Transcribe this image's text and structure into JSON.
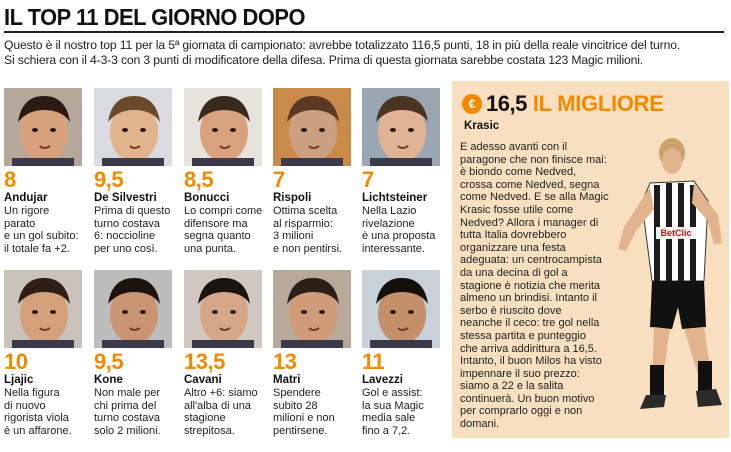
{
  "headline": "IL TOP 11 DEL GIORNO DOPO",
  "intro": [
    "Questo è il nostro top 11 per la 5ª giornata di campionato: avrebbe totalizzato 116,5 punti, 18 in più della reale vincitrice del turno.",
    "Si schiera con il 4-3-3 con 3 punti di modificatore della difesa. Prima di questa giornata sarebbe costata 123 Magic milioni."
  ],
  "players": [
    {
      "score": "8",
      "name": "Andujar",
      "desc": [
        "Un rigore",
        "parato",
        "e un gol subito:",
        "il totale fa +2."
      ]
    },
    {
      "score": "9,5",
      "name": "De Silvestri",
      "desc": [
        "Prima di questo",
        "turno costava",
        "6: noccioline",
        "per uno così."
      ]
    },
    {
      "score": "8,5",
      "name": "Bonucci",
      "desc": [
        "Lo compri come",
        "difensore ma",
        "segna quanto",
        "una punta."
      ]
    },
    {
      "score": "7",
      "name": "Rispoli",
      "desc": [
        "Ottima scelta",
        "al risparmio:",
        "3 milioni",
        "e non pentirsi."
      ]
    },
    {
      "score": "7",
      "name": "Lichtsteiner",
      "desc": [
        "Nella Lazio",
        "rivelazione",
        "è una proposta",
        "interessante."
      ]
    },
    {
      "score": "10",
      "name": "Ljajic",
      "desc": [
        "Nella figura",
        "di nuovo",
        "rigorista viola",
        "è un affarone."
      ]
    },
    {
      "score": "9,5",
      "name": "Kone",
      "desc": [
        "Non male per",
        "chi prima del",
        "turno costava",
        "solo 2 milioni."
      ]
    },
    {
      "score": "13,5",
      "name": "Cavani",
      "desc": [
        "Altro +6: siamo",
        "all'alba di una",
        "stagione",
        "strepitosa."
      ]
    },
    {
      "score": "13",
      "name": "Matri",
      "desc": [
        "Spendere",
        "subito 28",
        "milioni e non",
        "pentirsene."
      ]
    },
    {
      "score": "11",
      "name": "Lavezzi",
      "desc": [
        "Gol e assist:",
        "la sua Magic",
        "media sale",
        "fino a 7,2."
      ]
    }
  ],
  "best": {
    "badge": "€",
    "score": "16,5",
    "title": "IL MIGLIORE",
    "name": "Krasic",
    "text": [
      "E adesso avanti con il",
      "paragone che non finisce mai:",
      "è biondo come Nedved,",
      "crossa come Nedved, segna",
      "come Nedved. E se alla Magic",
      "Krasic fosse utile come",
      "Nedved? Allora i manager di",
      "tutta Italia dovrebbero",
      "organizzare una festa",
      "adeguata: un centrocampista",
      "da una decina di gol a",
      "stagione è notizia che merita",
      "almeno un brindisi. Intanto il",
      "serbo è riuscito dove",
      "neanche il ceco: tre gol nella",
      "stessa partita e punteggio",
      "che arriva addirittura a 16,5.",
      "Intanto, il buon Milos ha visto",
      "impennare il suo prezzo:",
      "siamo a 22 e la salita",
      "continuerà. Un buon motivo",
      "per comprarlo oggi e non",
      "domani."
    ],
    "jersey_sponsor": "BetClic"
  },
  "colors": {
    "accent": "#f08a00",
    "panel": "#f8dfbf"
  }
}
